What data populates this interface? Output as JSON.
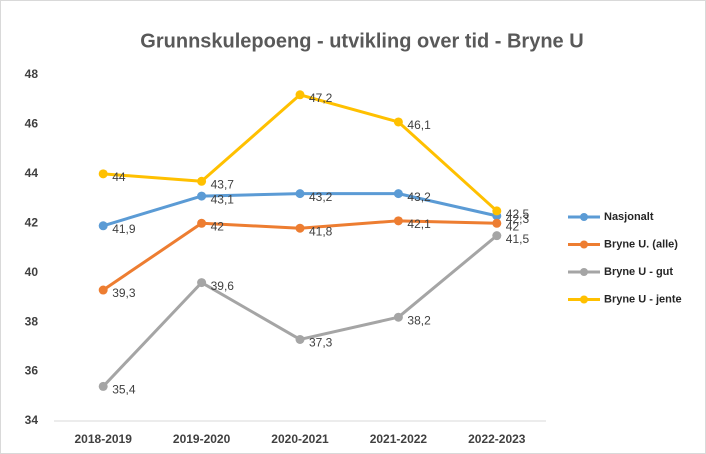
{
  "chart_data": {
    "type": "line",
    "title": "Grunnskulepoeng - utvikling over tid - Bryne U",
    "categories": [
      "2018-2019",
      "2019-2020",
      "2020-2021",
      "2021-2022",
      "2022-2023"
    ],
    "series": [
      {
        "name": "Nasjonalt",
        "color": "#5b9bd5",
        "values": [
          41.9,
          43.1,
          43.2,
          43.2,
          42.3
        ],
        "value_labels": [
          "41,9",
          "43,1",
          "43,2",
          "43,2",
          "42,3"
        ]
      },
      {
        "name": "Bryne U. (alle)",
        "color": "#ed7d31",
        "values": [
          39.3,
          42,
          41.8,
          42.1,
          42
        ],
        "value_labels": [
          "39,3",
          "42",
          "41,8",
          "42,1",
          "42"
        ]
      },
      {
        "name": "Bryne U - gut",
        "color": "#a5a5a5",
        "values": [
          35.4,
          39.6,
          37.3,
          38.2,
          41.5
        ],
        "value_labels": [
          "35,4",
          "39,6",
          "37,3",
          "38,2",
          "41,5"
        ]
      },
      {
        "name": "Bryne U - jente",
        "color": "#ffc000",
        "values": [
          44,
          43.7,
          47.2,
          46.1,
          42.5
        ],
        "value_labels": [
          "44",
          "43,7",
          "47,2",
          "46,1",
          "42,5"
        ]
      }
    ],
    "ylim": [
      34,
      48
    ],
    "yticks": [
      34,
      36,
      38,
      40,
      42,
      44,
      46,
      48
    ],
    "grid": false,
    "legend": "right"
  }
}
